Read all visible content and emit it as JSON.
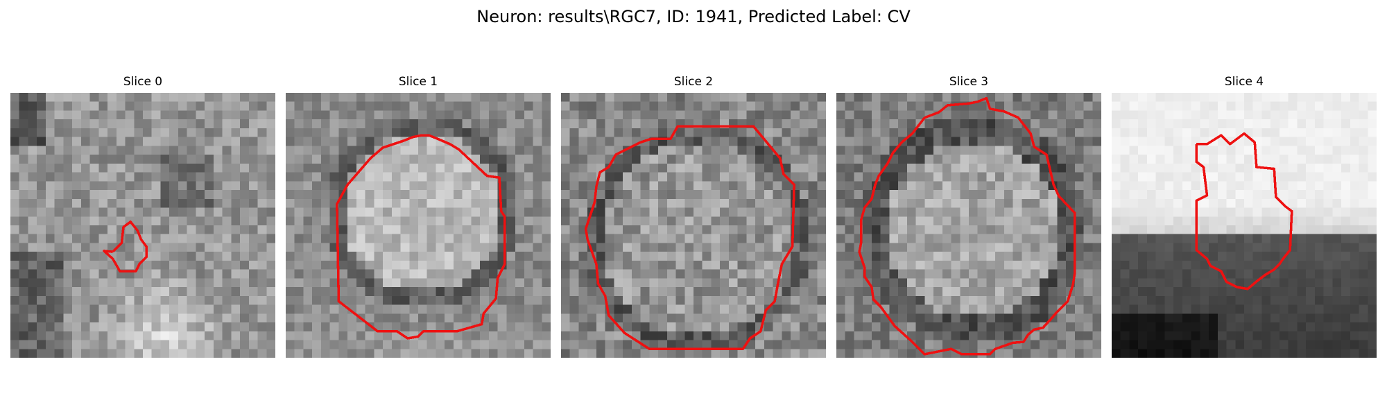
{
  "figure": {
    "title": "Neuron: results\\RGC7, ID: 1941, Predicted Label: CV"
  },
  "colors": {
    "contour": "#ee1111",
    "background": "#ffffff"
  },
  "panels": [
    {
      "title": "Slice 0"
    },
    {
      "title": "Slice 1"
    },
    {
      "title": "Slice 2"
    },
    {
      "title": "Slice 3"
    },
    {
      "title": "Slice 4"
    }
  ]
}
